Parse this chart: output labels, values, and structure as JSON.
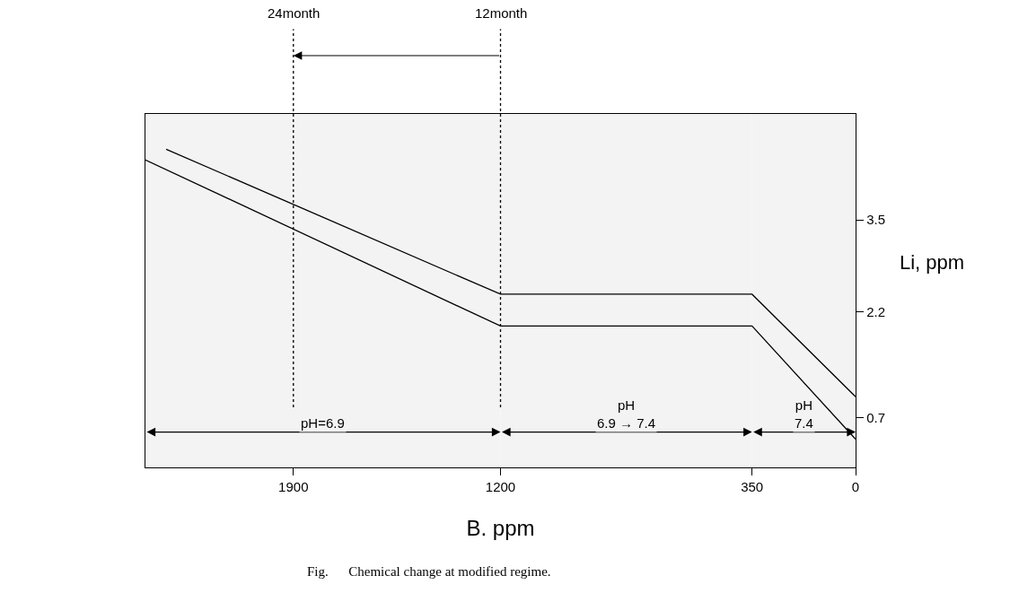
{
  "chart_data": {
    "type": "line",
    "xlabel": "B. ppm",
    "ylabel": "Li, ppm",
    "xlim": [
      2400,
      0
    ],
    "xticks": [
      1900,
      1200,
      350,
      0
    ],
    "ylim": [
      0,
      5
    ],
    "yticks": [
      3.5,
      2.2,
      0.7
    ],
    "series": [
      {
        "color": "#000000",
        "x": [
          2330,
          1200,
          350,
          0
        ],
        "values": [
          4.5,
          2.45,
          2.45,
          1.0
        ]
      },
      {
        "color": "#000000",
        "x": [
          2400,
          1200,
          350,
          0
        ],
        "values": [
          4.35,
          2.0,
          2.0,
          0.4
        ]
      }
    ],
    "ref_lines": [
      {
        "axis": "x",
        "value": 1900,
        "label": "24month",
        "line_style": "dotted"
      },
      {
        "axis": "x",
        "value": 1200,
        "label": "12month",
        "line_style": "dotted"
      }
    ],
    "bands": [
      {
        "axis": "x",
        "from": 2400,
        "to": 1200,
        "label": "pH=6.9",
        "color": "#f3f3f3"
      },
      {
        "axis": "x",
        "from": 1200,
        "to": 350,
        "label": "pH\n6.9 → 7.4",
        "color": "#f3f3f3"
      },
      {
        "axis": "x",
        "from": 350,
        "to": 0,
        "label": "pH\n7.4",
        "color": "#f3f3f3"
      }
    ],
    "annotations": [
      "Fig.      Chemical change at modified regime."
    ],
    "grid": false,
    "marker": "none",
    "line_style": "solid"
  }
}
